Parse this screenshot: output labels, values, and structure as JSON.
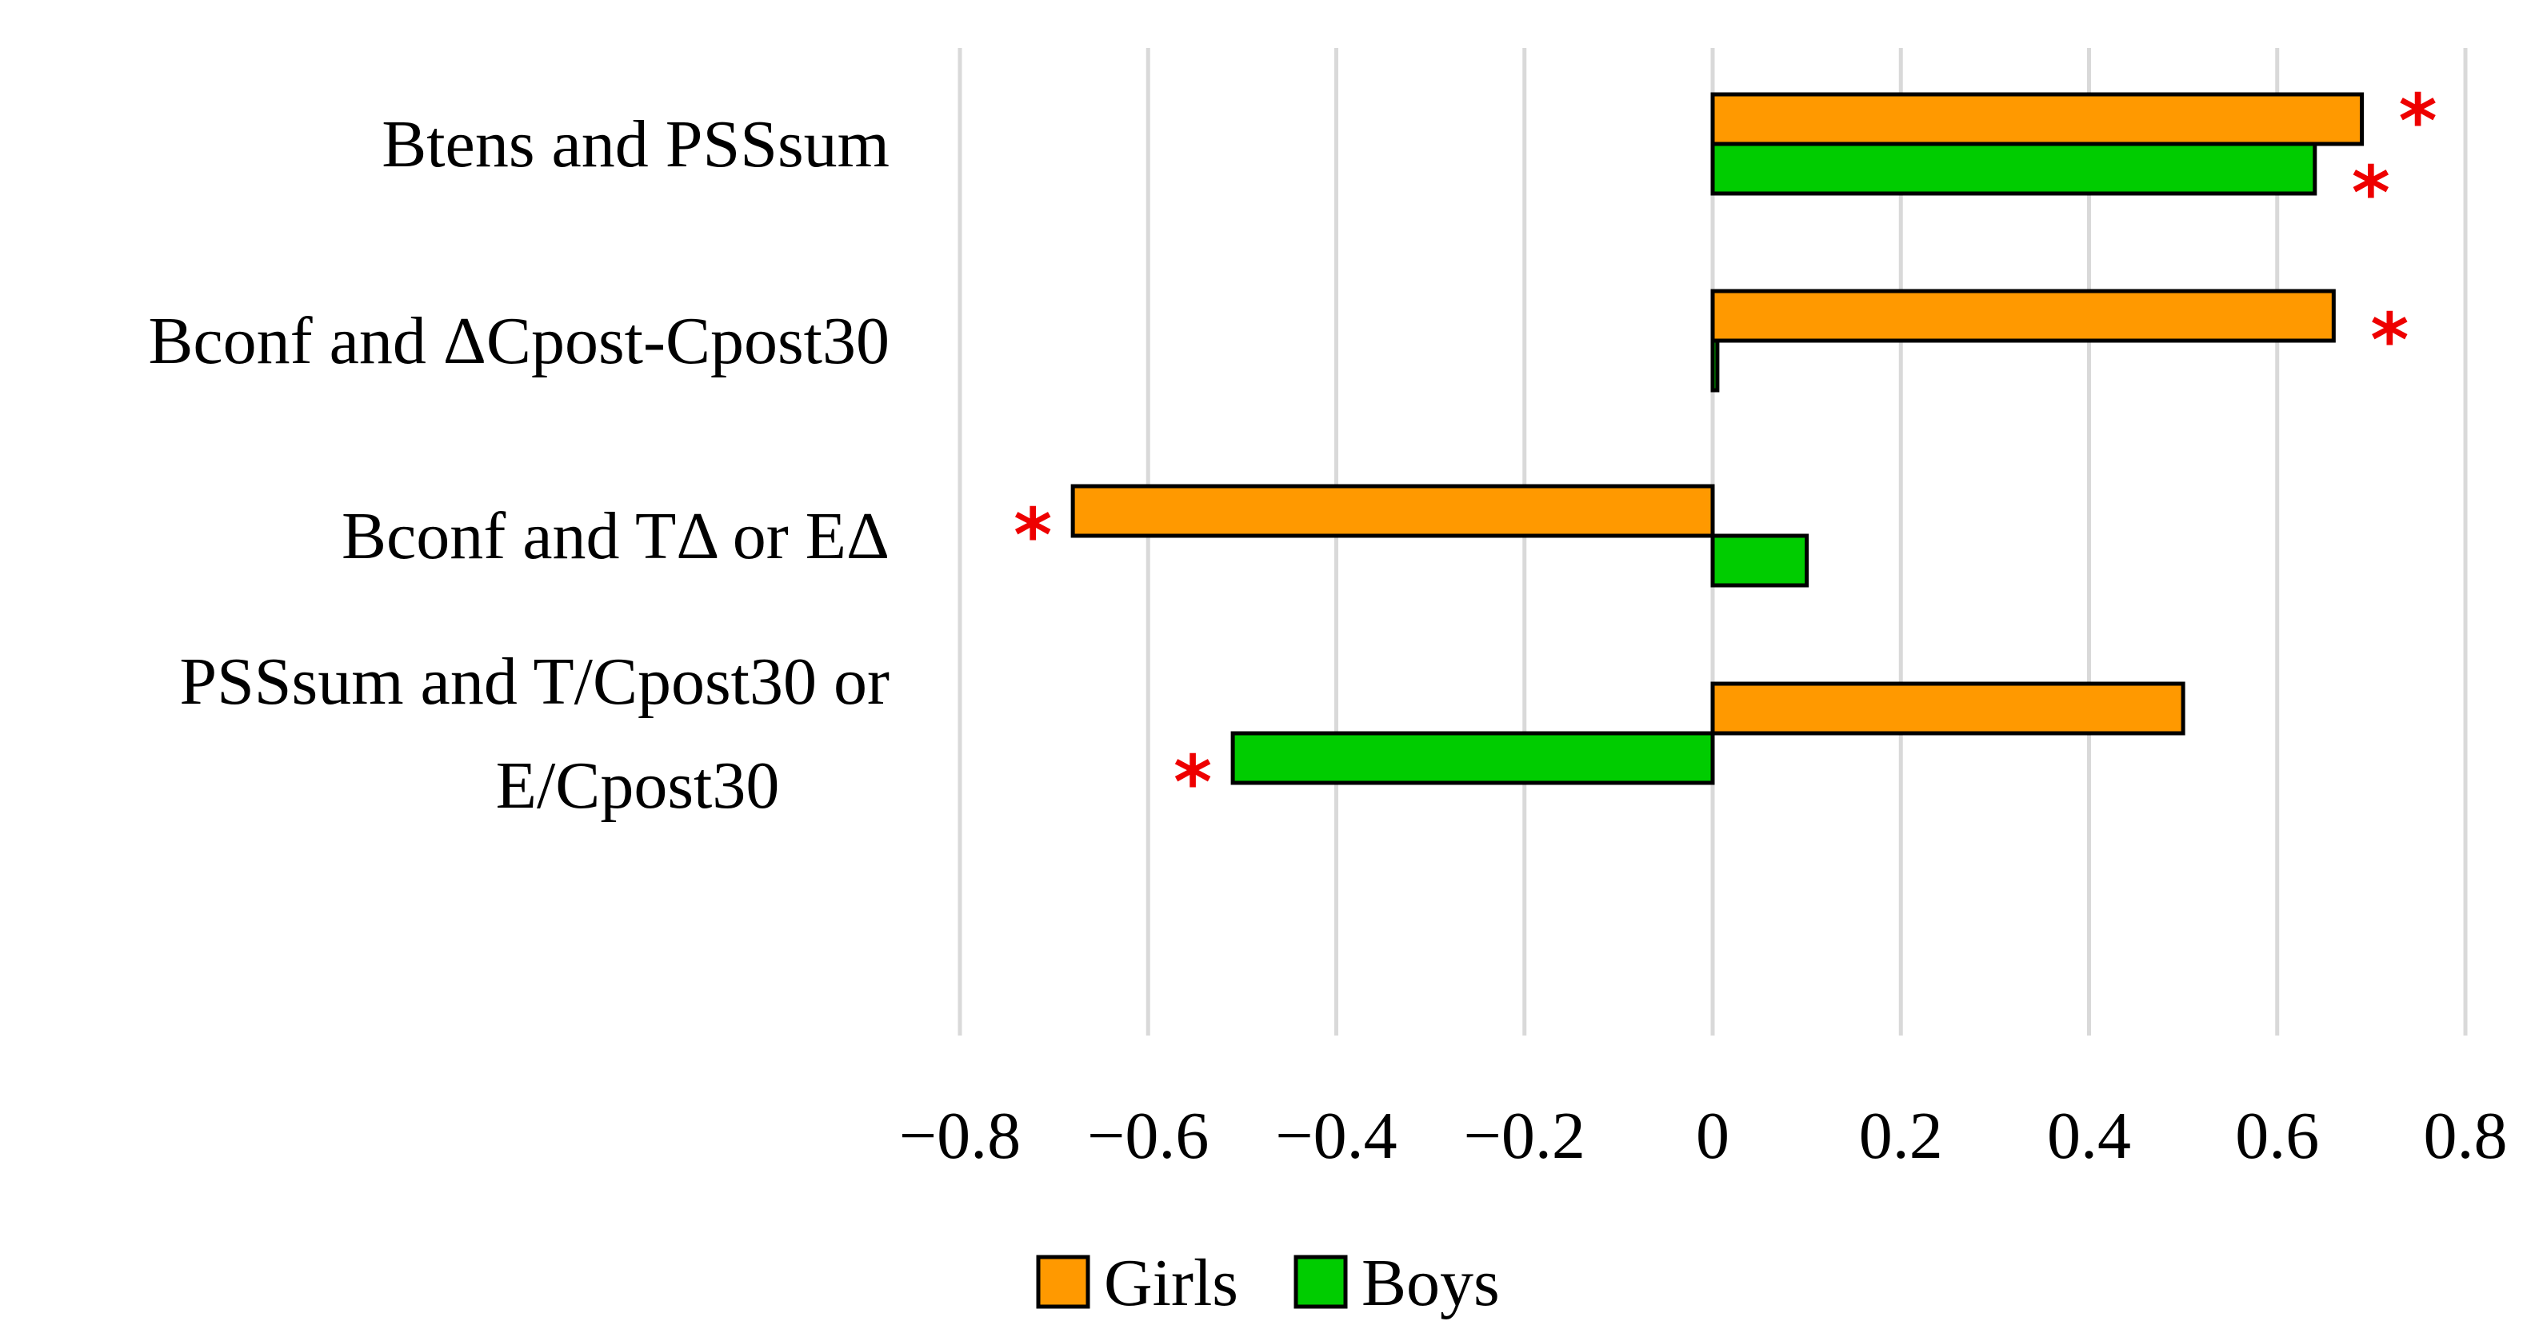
{
  "chart_data": {
    "type": "bar",
    "orientation": "horizontal",
    "categories": [
      [
        "Btens and PSSsum"
      ],
      [
        "Bconf and ΔCpost-Cpost30"
      ],
      [
        "Bconf and TΔ or EΔ"
      ],
      [
        "PSSsum and T/Cpost30 or",
        "E/Cpost30"
      ]
    ],
    "series": [
      {
        "name": "Girls",
        "color": "#FF9900",
        "values": [
          0.69,
          0.66,
          -0.68,
          0.5
        ],
        "significant": [
          true,
          true,
          true,
          false
        ]
      },
      {
        "name": "Boys",
        "color": "#00CC00",
        "values": [
          0.64,
          0.005,
          0.1,
          -0.51
        ],
        "significant": [
          true,
          false,
          false,
          true
        ]
      }
    ],
    "significance_marker": "*",
    "significance_color": "#EE0000",
    "xlim": [
      -0.8,
      0.8
    ],
    "xticks": [
      -0.8,
      -0.6,
      -0.4,
      -0.2,
      0,
      0.2,
      0.4,
      0.6,
      0.8
    ],
    "xtick_labels": [
      "−0.8",
      "−0.6",
      "−0.4",
      "−0.2",
      "0",
      "0.2",
      "0.4",
      "0.6",
      "0.8"
    ],
    "grid": true,
    "legend_position": "bottom",
    "title": "",
    "xlabel": "",
    "ylabel": ""
  }
}
